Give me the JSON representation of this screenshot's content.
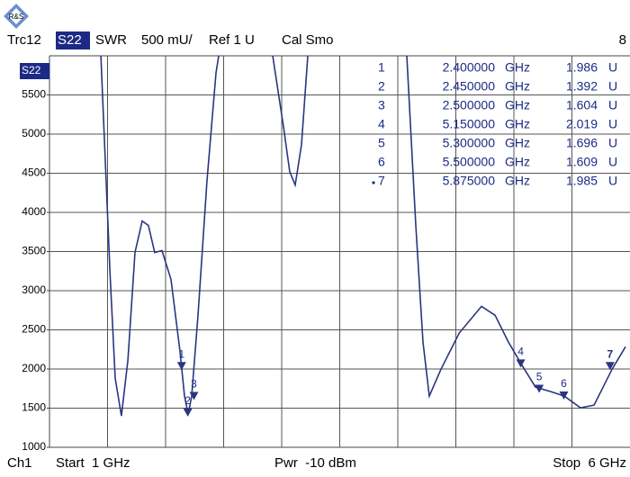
{
  "chart_data": {
    "type": "line",
    "header": {
      "trace": "Trc12",
      "param": "S22",
      "format": "SWR",
      "scale": "500 mU/",
      "ref": "Ref 1 U",
      "cal": "Cal Smo",
      "number": "8"
    },
    "footer": {
      "channel": "Ch1",
      "start": "Start  1 GHz",
      "power": "Pwr  -10 dBm",
      "stop": "Stop  6 GHz"
    },
    "trace_label": "S22",
    "xlim": [
      1,
      6
    ],
    "ylim": [
      1000,
      6000
    ],
    "yticks": [
      1000,
      1500,
      2000,
      2500,
      3000,
      3500,
      4000,
      4500,
      5000,
      5500
    ],
    "grid": true,
    "series": [
      {
        "name": "S22",
        "color": "#2a3580",
        "x": [
          1.745,
          1.818,
          1.861,
          1.912,
          1.964,
          2.022,
          2.08,
          2.131,
          2.182,
          2.241,
          2.314,
          2.387,
          2.423,
          2.453,
          2.482,
          2.533,
          2.606,
          2.679,
          2.701,
          2.92,
          3.139,
          3.226,
          3.277,
          3.321,
          3.372,
          3.423,
          3.82,
          4.226,
          4.299,
          4.358,
          4.409,
          4.504,
          4.65,
          4.832,
          4.942,
          5.051,
          5.153,
          5.27,
          5.394,
          5.504,
          5.635,
          5.745,
          5.891,
          6.0
        ],
        "values": [
          6000,
          3259,
          1883,
          1401,
          2112,
          3489,
          3890,
          3833,
          3489,
          3511,
          3144,
          2227,
          1654,
          1424,
          1654,
          2686,
          4406,
          5782,
          6000,
          null,
          6000,
          5094,
          4521,
          4349,
          4865,
          6000,
          null,
          6000,
          3833,
          2342,
          1654,
          1998,
          2456,
          2800,
          2686,
          2342,
          2067,
          1768,
          1711,
          1654,
          1505,
          1539,
          1998,
          2284
        ]
      }
    ],
    "freq_unit": "GHz",
    "value_unit": "U",
    "markers": [
      {
        "label": "1",
        "freq": 2.4,
        "freq_label": "2.400000",
        "value": 1986,
        "value_label": "1.986"
      },
      {
        "label": "2",
        "freq": 2.45,
        "freq_label": "2.450000",
        "value": 1392,
        "value_label": "1.392"
      },
      {
        "label": "3",
        "freq": 2.5,
        "freq_label": "2.500000",
        "value": 1604,
        "value_label": "1.604"
      },
      {
        "label": "4",
        "freq": 5.15,
        "freq_label": "5.150000",
        "value": 2019,
        "value_label": "2.019"
      },
      {
        "label": "5",
        "freq": 5.3,
        "freq_label": "5.300000",
        "value": 1696,
        "value_label": "1.696"
      },
      {
        "label": "6",
        "freq": 5.5,
        "freq_label": "5.500000",
        "value": 1609,
        "value_label": "1.609"
      },
      {
        "label": "7",
        "freq": 5.875,
        "freq_label": "5.875000",
        "value": 1985,
        "value_label": "1.985"
      }
    ]
  }
}
